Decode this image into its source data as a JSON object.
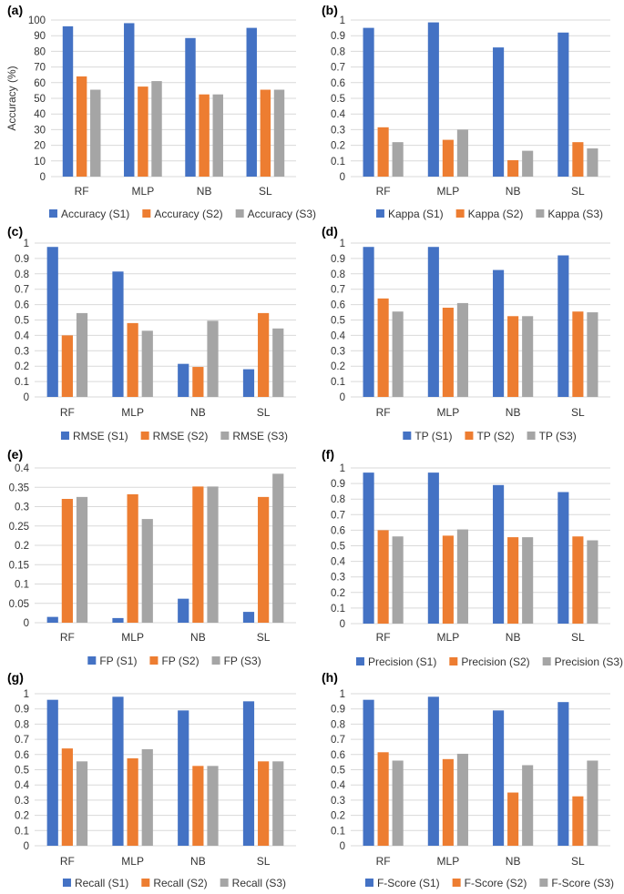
{
  "chart_data": [
    {
      "id": "a",
      "panel_label": "(a)",
      "type": "bar",
      "categories": [
        "RF",
        "MLP",
        "NB",
        "SL"
      ],
      "ylabel": "Accuracy (%)",
      "ylim": [
        0,
        100
      ],
      "yticks": [
        "0",
        "10",
        "20",
        "30",
        "40",
        "50",
        "60",
        "70",
        "80",
        "90",
        "100"
      ],
      "series": [
        {
          "name": "Accuracy (S1)",
          "values": [
            96,
            98,
            88.5,
            95
          ]
        },
        {
          "name": "Accuracy (S2)",
          "values": [
            64,
            57.5,
            52.5,
            55.5
          ]
        },
        {
          "name": "Accuracy (S3)",
          "values": [
            55.5,
            61,
            52.5,
            55.5
          ]
        }
      ]
    },
    {
      "id": "b",
      "panel_label": "(b)",
      "type": "bar",
      "categories": [
        "RF",
        "MLP",
        "NB",
        "SL"
      ],
      "ylabel": "",
      "ylim": [
        0,
        1
      ],
      "yticks": [
        "0",
        "0.1",
        "0.2",
        "0.3",
        "0.4",
        "0.5",
        "0.6",
        "0.7",
        "0.8",
        "0.9",
        "1"
      ],
      "series": [
        {
          "name": "Kappa (S1)",
          "values": [
            0.95,
            0.985,
            0.825,
            0.92
          ]
        },
        {
          "name": "Kappa (S2)",
          "values": [
            0.315,
            0.235,
            0.105,
            0.22
          ]
        },
        {
          "name": "Kappa (S3)",
          "values": [
            0.22,
            0.3,
            0.165,
            0.18
          ]
        }
      ]
    },
    {
      "id": "c",
      "panel_label": "(c)",
      "type": "bar",
      "categories": [
        "RF",
        "MLP",
        "NB",
        "SL"
      ],
      "ylabel": "",
      "ylim": [
        0,
        1
      ],
      "yticks": [
        "0",
        "0.1",
        "0.2",
        "0.3",
        "0.4",
        "0.5",
        "0.6",
        "0.7",
        "0.8",
        "0.9",
        "1"
      ],
      "series": [
        {
          "name": "RMSE (S1)",
          "values": [
            0.975,
            0.815,
            0.215,
            0.18
          ]
        },
        {
          "name": "RMSE (S2)",
          "values": [
            0.4,
            0.48,
            0.195,
            0.545
          ]
        },
        {
          "name": "RMSE (S3)",
          "values": [
            0.545,
            0.43,
            0.495,
            0.445
          ]
        }
      ]
    },
    {
      "id": "d",
      "panel_label": "(d)",
      "type": "bar",
      "categories": [
        "RF",
        "MLP",
        "NB",
        "SL"
      ],
      "ylabel": "",
      "ylim": [
        0,
        1
      ],
      "yticks": [
        "0",
        "0.1",
        "0.2",
        "0.3",
        "0.4",
        "0.5",
        "0.6",
        "0.7",
        "0.8",
        "0.9",
        "1"
      ],
      "series": [
        {
          "name": "TP (S1)",
          "values": [
            0.975,
            0.975,
            0.825,
            0.92
          ]
        },
        {
          "name": "TP (S2)",
          "values": [
            0.64,
            0.58,
            0.525,
            0.555
          ]
        },
        {
          "name": "TP (S3)",
          "values": [
            0.555,
            0.61,
            0.525,
            0.55
          ]
        }
      ]
    },
    {
      "id": "e",
      "panel_label": "(e)",
      "type": "bar",
      "categories": [
        "RF",
        "MLP",
        "NB",
        "SL"
      ],
      "ylabel": "",
      "ylim": [
        0,
        0.4
      ],
      "yticks": [
        "0",
        "0.05",
        "0.1",
        "0.15",
        "0.2",
        "0.25",
        "0.3",
        "0.35",
        "0.4"
      ],
      "series": [
        {
          "name": "FP (S1)",
          "values": [
            0.015,
            0.012,
            0.062,
            0.028
          ]
        },
        {
          "name": "FP (S2)",
          "values": [
            0.32,
            0.332,
            0.352,
            0.325
          ]
        },
        {
          "name": "FP (S3)",
          "values": [
            0.325,
            0.268,
            0.352,
            0.385
          ]
        }
      ]
    },
    {
      "id": "f",
      "panel_label": "(f)",
      "type": "bar",
      "categories": [
        "RF",
        "MLP",
        "NB",
        "SL"
      ],
      "ylabel": "",
      "ylim": [
        0,
        1
      ],
      "yticks": [
        "0",
        "0.1",
        "0.2",
        "0.3",
        "0.4",
        "0.5",
        "0.6",
        "0.7",
        "0.8",
        "0.9",
        "1"
      ],
      "series": [
        {
          "name": "Precision (S1)",
          "values": [
            0.97,
            0.97,
            0.89,
            0.845
          ]
        },
        {
          "name": "Precision (S2)",
          "values": [
            0.6,
            0.565,
            0.555,
            0.56
          ]
        },
        {
          "name": "Precision (S3)",
          "values": [
            0.56,
            0.605,
            0.555,
            0.535
          ]
        }
      ]
    },
    {
      "id": "g",
      "panel_label": "(g)",
      "type": "bar",
      "categories": [
        "RF",
        "MLP",
        "NB",
        "SL"
      ],
      "ylabel": "",
      "ylim": [
        0,
        1
      ],
      "yticks": [
        "0",
        "0.1",
        "0.2",
        "0.3",
        "0.4",
        "0.5",
        "0.6",
        "0.7",
        "0.8",
        "0.9",
        "1"
      ],
      "series": [
        {
          "name": "Recall (S1)",
          "values": [
            0.96,
            0.98,
            0.89,
            0.95
          ]
        },
        {
          "name": "Recall (S2)",
          "values": [
            0.64,
            0.575,
            0.525,
            0.555
          ]
        },
        {
          "name": "Recall (S3)",
          "values": [
            0.555,
            0.635,
            0.525,
            0.555
          ]
        }
      ]
    },
    {
      "id": "h",
      "panel_label": "(h)",
      "type": "bar",
      "categories": [
        "RF",
        "MLP",
        "NB",
        "SL"
      ],
      "ylabel": "",
      "ylim": [
        0,
        1
      ],
      "yticks": [
        "0",
        "0.1",
        "0.2",
        "0.3",
        "0.4",
        "0.5",
        "0.6",
        "0.7",
        "0.8",
        "0.9",
        "1"
      ],
      "series": [
        {
          "name": "F-Score (S1)",
          "values": [
            0.96,
            0.98,
            0.89,
            0.945
          ]
        },
        {
          "name": "F-Score (S2)",
          "values": [
            0.615,
            0.57,
            0.35,
            0.325
          ]
        },
        {
          "name": "F-Score (S3)",
          "values": [
            0.56,
            0.605,
            0.53,
            0.56
          ]
        }
      ]
    }
  ],
  "colors": {
    "series": [
      "#4472C4",
      "#ED7D31",
      "#A5A5A5"
    ],
    "gridline": "#D9D9D9",
    "text": "#333333"
  }
}
